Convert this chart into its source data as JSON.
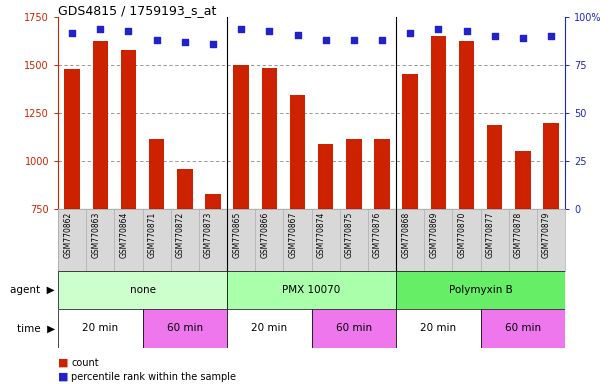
{
  "title": "GDS4815 / 1759193_s_at",
  "samples": [
    "GSM770862",
    "GSM770863",
    "GSM770864",
    "GSM770871",
    "GSM770872",
    "GSM770873",
    "GSM770865",
    "GSM770866",
    "GSM770867",
    "GSM770874",
    "GSM770875",
    "GSM770876",
    "GSM770868",
    "GSM770869",
    "GSM770870",
    "GSM770877",
    "GSM770878",
    "GSM770879"
  ],
  "counts": [
    1480,
    1625,
    1580,
    1115,
    960,
    830,
    1500,
    1485,
    1345,
    1090,
    1115,
    1115,
    1455,
    1655,
    1625,
    1190,
    1055,
    1200
  ],
  "percentiles": [
    92,
    94,
    93,
    88,
    87,
    86,
    94,
    93,
    91,
    88,
    88,
    88,
    92,
    94,
    93,
    90,
    89,
    90
  ],
  "ylim_left": [
    750,
    1750
  ],
  "ylim_right": [
    0,
    100
  ],
  "yticks_left": [
    750,
    1000,
    1250,
    1500,
    1750
  ],
  "yticks_right": [
    0,
    25,
    50,
    75,
    100
  ],
  "bar_color": "#cc2200",
  "dot_color": "#2222cc",
  "agent_groups": [
    {
      "label": "none",
      "start": 0,
      "end": 6,
      "color": "#ccffcc"
    },
    {
      "label": "PMX 10070",
      "start": 6,
      "end": 12,
      "color": "#aaffaa"
    },
    {
      "label": "Polymyxin B",
      "start": 12,
      "end": 18,
      "color": "#66ee66"
    }
  ],
  "time_groups": [
    {
      "label": "20 min",
      "start": 0,
      "end": 3,
      "color": "#ffffff"
    },
    {
      "label": "60 min",
      "start": 3,
      "end": 6,
      "color": "#ee77ee"
    },
    {
      "label": "20 min",
      "start": 6,
      "end": 9,
      "color": "#ffffff"
    },
    {
      "label": "60 min",
      "start": 9,
      "end": 12,
      "color": "#ee77ee"
    },
    {
      "label": "20 min",
      "start": 12,
      "end": 15,
      "color": "#ffffff"
    },
    {
      "label": "60 min",
      "start": 15,
      "end": 18,
      "color": "#ee77ee"
    }
  ],
  "left_axis_color": "#cc2200",
  "right_axis_color": "#2222cc",
  "grid_color": "#888888",
  "separator_color": "#000000",
  "label_bg_color": "#d8d8d8",
  "label_border_color": "#aaaaaa"
}
